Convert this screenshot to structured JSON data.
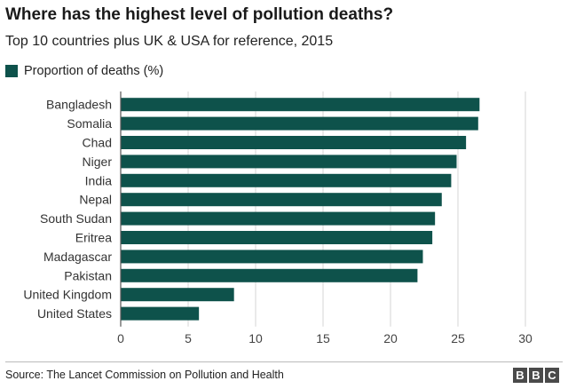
{
  "title": "Where has the highest level of pollution deaths?",
  "subtitle": "Top 10 countries plus UK & USA for reference, 2015",
  "source": "Source: The Lancet Commission on Pollution and Health",
  "logo_letters": [
    "B",
    "B",
    "C"
  ],
  "colors": {
    "bar": "#0e524b",
    "grid": "#d6d6d6",
    "axis": "#555555"
  },
  "chart_data": {
    "type": "bar",
    "orientation": "horizontal",
    "title": "Where has the highest level of pollution deaths?",
    "subtitle": "Top 10 countries plus UK & USA for reference, 2015",
    "categories": [
      "Bangladesh",
      "Somalia",
      "Chad",
      "Niger",
      "India",
      "Nepal",
      "South Sudan",
      "Eritrea",
      "Madagascar",
      "Pakistan",
      "United Kingdom",
      "United States"
    ],
    "series": [
      {
        "name": "Proportion of deaths (%)",
        "values": [
          26.6,
          26.5,
          25.6,
          24.9,
          24.5,
          23.8,
          23.3,
          23.1,
          22.4,
          22.0,
          8.4,
          5.8
        ]
      }
    ],
    "xlim": [
      0,
      30
    ],
    "xticks": [
      0,
      5,
      10,
      15,
      20,
      25,
      30
    ],
    "xlabel": "",
    "ylabel": "",
    "grid": "vertical",
    "legend": "top-left"
  }
}
